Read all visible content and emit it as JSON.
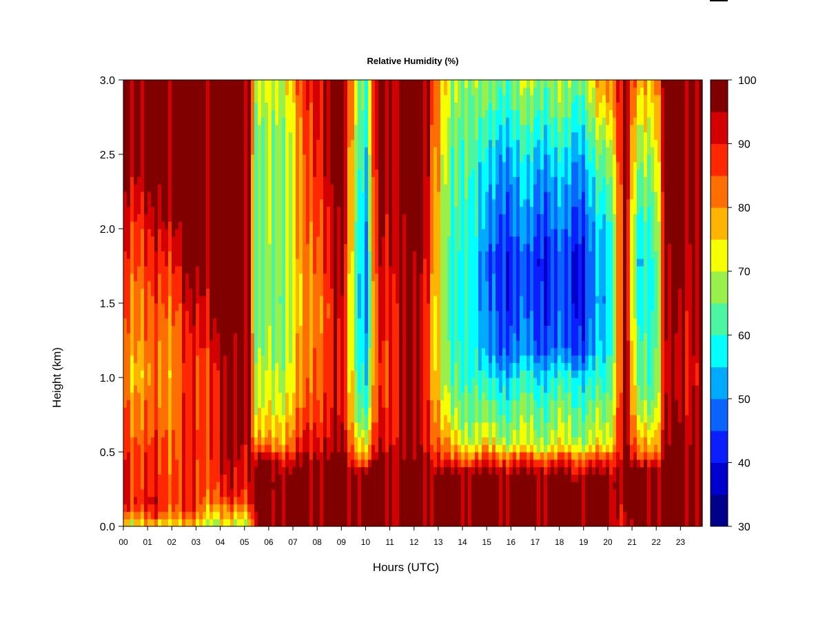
{
  "chart_data": {
    "type": "heatmap",
    "title": "Relative Humidity (%)",
    "xlabel": "Hours (UTC)",
    "ylabel": "Height (km)",
    "x_ticks": [
      "00",
      "01",
      "02",
      "03",
      "04",
      "05",
      "06",
      "07",
      "08",
      "09",
      "10",
      "11",
      "12",
      "13",
      "14",
      "15",
      "16",
      "17",
      "18",
      "19",
      "20",
      "21",
      "22",
      "23"
    ],
    "y_ticks": [
      "0.0",
      "0.5",
      "1.0",
      "1.5",
      "2.0",
      "2.5",
      "3.0"
    ],
    "xlim": [
      0,
      23.9
    ],
    "ylim": [
      0,
      3.0
    ],
    "colorbar": {
      "ticks": [
        "30",
        "40",
        "50",
        "60",
        "70",
        "80",
        "90",
        "100"
      ],
      "range": [
        30,
        100
      ],
      "levels": [
        30,
        35,
        40,
        45,
        50,
        55,
        60,
        65,
        70,
        75,
        80,
        85,
        90,
        95,
        100
      ],
      "colors": [
        "#00008B",
        "#0000CD",
        "#0A1EFF",
        "#0A64FF",
        "#00AAFF",
        "#00FFFF",
        "#4CF5A0",
        "#9AF04A",
        "#F5FF00",
        "#FFB400",
        "#FF6E00",
        "#FF2800",
        "#D20000",
        "#800000"
      ]
    },
    "profiles": [
      {
        "t": 0.0,
        "rh": [
          [
            0,
            72
          ],
          [
            0.05,
            80
          ],
          [
            0.15,
            92
          ],
          [
            0.5,
            90
          ],
          [
            1.0,
            82
          ],
          [
            1.5,
            86
          ],
          [
            2.0,
            92
          ],
          [
            2.3,
            96
          ],
          [
            2.6,
            98
          ],
          [
            3.0,
            99
          ]
        ]
      },
      {
        "t": 1.0,
        "rh": [
          [
            0,
            72
          ],
          [
            0.05,
            82
          ],
          [
            0.15,
            90
          ],
          [
            0.5,
            85
          ],
          [
            1.0,
            78
          ],
          [
            1.5,
            82
          ],
          [
            2.0,
            88
          ],
          [
            2.2,
            93
          ],
          [
            2.35,
            97
          ],
          [
            2.5,
            99
          ],
          [
            3.0,
            99
          ]
        ]
      },
      {
        "t": 2.0,
        "rh": [
          [
            0,
            72
          ],
          [
            0.05,
            82
          ],
          [
            0.15,
            88
          ],
          [
            0.5,
            86
          ],
          [
            1.0,
            82
          ],
          [
            1.5,
            86
          ],
          [
            1.9,
            93
          ],
          [
            2.0,
            97
          ],
          [
            2.1,
            99
          ],
          [
            3.0,
            99
          ]
        ]
      },
      {
        "t": 3.0,
        "rh": [
          [
            0,
            72
          ],
          [
            0.05,
            82
          ],
          [
            0.15,
            86
          ],
          [
            0.5,
            88
          ],
          [
            1.0,
            86
          ],
          [
            1.4,
            90
          ],
          [
            1.6,
            95
          ],
          [
            1.8,
            99
          ],
          [
            3.0,
            99
          ]
        ]
      },
      {
        "t": 4.0,
        "rh": [
          [
            0,
            66
          ],
          [
            0.05,
            72
          ],
          [
            0.12,
            78
          ],
          [
            0.2,
            86
          ],
          [
            0.5,
            92
          ],
          [
            1.0,
            92
          ],
          [
            1.2,
            95
          ],
          [
            1.3,
            99
          ],
          [
            3.0,
            99
          ]
        ]
      },
      {
        "t": 5.2,
        "rh": [
          [
            0,
            70
          ],
          [
            0.05,
            80
          ],
          [
            0.15,
            88
          ],
          [
            0.3,
            95
          ],
          [
            0.6,
            98
          ],
          [
            3.0,
            99
          ]
        ]
      },
      {
        "t": 5.5,
        "rh": [
          [
            0,
            97
          ],
          [
            0.3,
            99
          ],
          [
            0.45,
            96
          ],
          [
            0.55,
            76
          ],
          [
            0.8,
            68
          ],
          [
            1.0,
            65
          ],
          [
            1.5,
            61
          ],
          [
            2.0,
            62
          ],
          [
            2.5,
            62
          ],
          [
            3.0,
            65
          ]
        ]
      },
      {
        "t": 7.0,
        "rh": [
          [
            0,
            99
          ],
          [
            0.3,
            99
          ],
          [
            0.4,
            95
          ],
          [
            0.5,
            86
          ],
          [
            0.8,
            76
          ],
          [
            1.0,
            74
          ],
          [
            1.5,
            70
          ],
          [
            2.0,
            72
          ],
          [
            2.5,
            72
          ],
          [
            3.0,
            76
          ]
        ]
      },
      {
        "t": 8.0,
        "rh": [
          [
            0,
            99
          ],
          [
            0.4,
            99
          ],
          [
            0.5,
            95
          ],
          [
            0.8,
            88
          ],
          [
            1.0,
            86
          ],
          [
            1.5,
            84
          ],
          [
            2.0,
            88
          ],
          [
            2.5,
            92
          ],
          [
            3.0,
            95
          ]
        ]
      },
      {
        "t": 9.0,
        "rh": [
          [
            0,
            99
          ],
          [
            0.4,
            99
          ],
          [
            0.5,
            95
          ],
          [
            0.8,
            90
          ],
          [
            1.0,
            90
          ],
          [
            1.5,
            92
          ],
          [
            2.0,
            96
          ],
          [
            2.5,
            98
          ],
          [
            3.0,
            99
          ]
        ]
      },
      {
        "t": 10.0,
        "rh": [
          [
            0,
            99
          ],
          [
            0.35,
            99
          ],
          [
            0.45,
            80
          ],
          [
            0.7,
            62
          ],
          [
            1.0,
            55
          ],
          [
            1.5,
            48
          ],
          [
            2.0,
            50
          ],
          [
            2.5,
            55
          ],
          [
            3.0,
            60
          ]
        ]
      },
      {
        "t": 10.5,
        "rh": [
          [
            0,
            99
          ],
          [
            0.4,
            99
          ],
          [
            0.5,
            92
          ],
          [
            0.8,
            86
          ],
          [
            1.0,
            84
          ],
          [
            1.5,
            88
          ],
          [
            2.0,
            92
          ],
          [
            2.5,
            95
          ],
          [
            3.0,
            97
          ]
        ]
      },
      {
        "t": 11.5,
        "rh": [
          [
            0,
            99
          ],
          [
            0.4,
            99
          ],
          [
            0.5,
            96
          ],
          [
            1.0,
            95
          ],
          [
            1.5,
            96
          ],
          [
            2.0,
            98
          ],
          [
            3.0,
            99
          ]
        ]
      },
      {
        "t": 12.5,
        "rh": [
          [
            0,
            99
          ],
          [
            0.4,
            99
          ],
          [
            0.5,
            94
          ],
          [
            1.0,
            90
          ],
          [
            1.5,
            92
          ],
          [
            2.0,
            96
          ],
          [
            3.0,
            99
          ]
        ]
      },
      {
        "t": 13.5,
        "rh": [
          [
            0,
            99
          ],
          [
            0.35,
            99
          ],
          [
            0.45,
            82
          ],
          [
            0.7,
            68
          ],
          [
            1.0,
            60
          ],
          [
            1.5,
            56
          ],
          [
            2.0,
            58
          ],
          [
            2.5,
            60
          ],
          [
            3.0,
            66
          ]
        ]
      },
      {
        "t": 14.3,
        "rh": [
          [
            0,
            99
          ],
          [
            0.35,
            99
          ],
          [
            0.45,
            85
          ],
          [
            0.6,
            70
          ],
          [
            1.0,
            64
          ],
          [
            1.5,
            62
          ],
          [
            2.0,
            64
          ],
          [
            2.5,
            66
          ],
          [
            3.0,
            70
          ]
        ]
      },
      {
        "t": 15.0,
        "rh": [
          [
            0,
            99
          ],
          [
            0.35,
            99
          ],
          [
            0.45,
            86
          ],
          [
            0.55,
            72
          ],
          [
            0.8,
            62
          ],
          [
            1.0,
            56
          ],
          [
            1.2,
            48
          ],
          [
            1.5,
            46
          ],
          [
            1.8,
            45
          ],
          [
            2.0,
            48
          ],
          [
            2.4,
            52
          ],
          [
            2.8,
            60
          ],
          [
            3.0,
            64
          ]
        ]
      },
      {
        "t": 17.0,
        "rh": [
          [
            0,
            99
          ],
          [
            0.35,
            99
          ],
          [
            0.45,
            86
          ],
          [
            0.55,
            70
          ],
          [
            0.8,
            64
          ],
          [
            1.0,
            58
          ],
          [
            1.2,
            48
          ],
          [
            1.5,
            45
          ],
          [
            1.8,
            44
          ],
          [
            2.0,
            48
          ],
          [
            2.4,
            54
          ],
          [
            2.8,
            64
          ],
          [
            3.0,
            68
          ]
        ]
      },
      {
        "t": 18.8,
        "rh": [
          [
            0,
            99
          ],
          [
            0.3,
            99
          ],
          [
            0.45,
            86
          ],
          [
            0.55,
            70
          ],
          [
            0.8,
            64
          ],
          [
            1.0,
            58
          ],
          [
            1.2,
            45
          ],
          [
            1.5,
            43
          ],
          [
            1.8,
            42
          ],
          [
            2.0,
            46
          ],
          [
            2.4,
            52
          ],
          [
            2.8,
            62
          ],
          [
            3.0,
            66
          ]
        ]
      },
      {
        "t": 20.0,
        "rh": [
          [
            0,
            97
          ],
          [
            0.3,
            99
          ],
          [
            0.45,
            86
          ],
          [
            0.55,
            70
          ],
          [
            1.0,
            58
          ],
          [
            1.5,
            52
          ],
          [
            2.0,
            55
          ],
          [
            2.5,
            65
          ],
          [
            3.0,
            80
          ]
        ]
      },
      {
        "t": 20.7,
        "rh": [
          [
            0,
            92
          ],
          [
            0.3,
            99
          ],
          [
            1.0,
            99
          ],
          [
            3.0,
            99
          ]
        ]
      },
      {
        "t": 21.2,
        "rh": [
          [
            0,
            99
          ],
          [
            0.35,
            98
          ],
          [
            0.5,
            80
          ],
          [
            0.8,
            66
          ],
          [
            1.0,
            62
          ],
          [
            1.5,
            56
          ],
          [
            1.8,
            52
          ],
          [
            2.0,
            56
          ],
          [
            2.5,
            64
          ],
          [
            2.8,
            70
          ],
          [
            3.0,
            76
          ]
        ]
      },
      {
        "t": 22.0,
        "rh": [
          [
            0,
            99
          ],
          [
            0.4,
            99
          ],
          [
            0.5,
            82
          ],
          [
            0.8,
            70
          ],
          [
            1.0,
            66
          ],
          [
            1.5,
            64
          ],
          [
            2.0,
            66
          ],
          [
            2.5,
            74
          ],
          [
            3.0,
            82
          ]
        ]
      },
      {
        "t": 22.4,
        "rh": [
          [
            0,
            99
          ],
          [
            0.5,
            96
          ],
          [
            1.0,
            92
          ],
          [
            1.5,
            94
          ],
          [
            2.0,
            96
          ],
          [
            2.5,
            98
          ],
          [
            3.0,
            99
          ]
        ]
      },
      {
        "t": 23.9,
        "rh": [
          [
            0,
            99
          ],
          [
            0.5,
            98
          ],
          [
            1.0,
            96
          ],
          [
            1.5,
            97
          ],
          [
            2.0,
            98
          ],
          [
            3.0,
            99
          ]
        ]
      }
    ]
  }
}
